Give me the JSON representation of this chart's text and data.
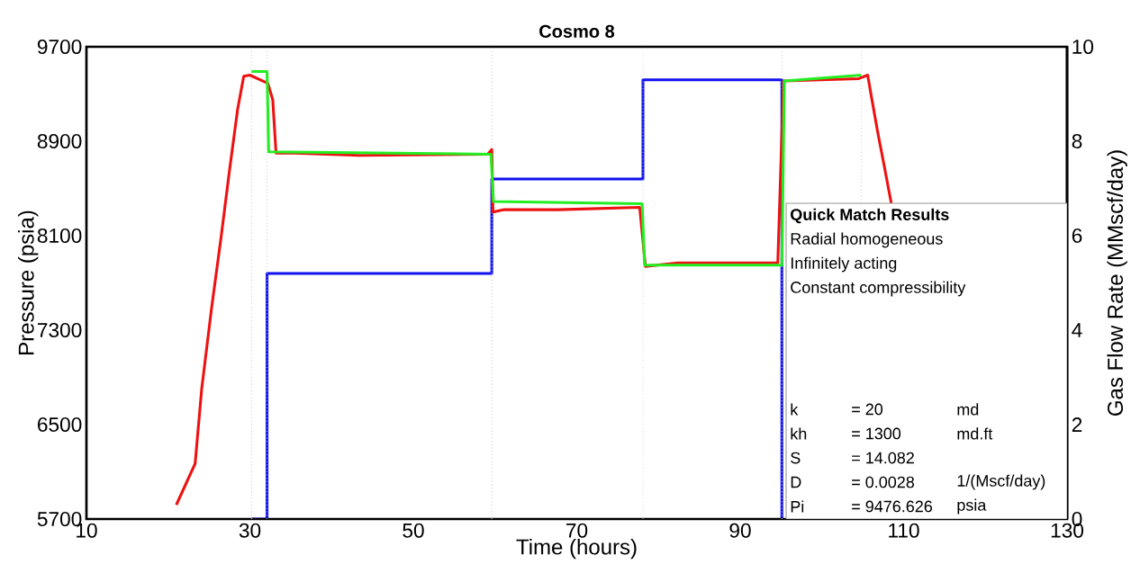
{
  "chart_data": {
    "type": "line",
    "title": "Cosmo 8",
    "xlabel": "Time (hours)",
    "ylabel": "Pressure (psia)",
    "y2label": "Gas Flow Rate (MMscf/day)",
    "xlim": [
      10,
      130
    ],
    "xticks": [
      10,
      30,
      50,
      70,
      90,
      110,
      130
    ],
    "ylim": [
      5700,
      9700
    ],
    "yticks": [
      5700,
      6500,
      7300,
      8100,
      8900,
      9700
    ],
    "y2lim": [
      0,
      10
    ],
    "y2ticks": [
      0,
      2,
      4,
      6,
      8,
      10
    ],
    "series": [
      {
        "color": "#ee1111",
        "x": [
          21.0,
          23.3,
          24.1,
          25.3,
          26.5,
          27.5,
          28.5,
          29.25,
          30.0,
          31.6,
          32.2,
          32.8,
          33.2,
          35.5,
          43.4,
          59.1,
          59.6,
          59.75,
          61.1,
          65.1,
          67.7,
          77.7,
          78.4,
          82.4,
          94.6,
          95.3,
          104.5,
          105.6,
          106.1,
          106.9,
          107.6,
          108.5
        ],
        "values": [
          5820,
          6170,
          6800,
          7480,
          8100,
          8650,
          9170,
          9450,
          9460,
          9410,
          9390,
          9250,
          8800,
          8800,
          8780,
          8790,
          8830,
          8300,
          8320,
          8320,
          8320,
          8340,
          7840,
          7870,
          7870,
          9410,
          9430,
          9460,
          9260,
          8950,
          8700,
          8370
        ]
      },
      {
        "color": "#22ee22",
        "x": [
          30.2,
          32.1,
          32.3,
          59.5,
          59.8,
          78.0,
          78.3,
          95.1,
          95.4,
          104.8
        ],
        "values": [
          9490,
          9490,
          8810,
          8790,
          8390,
          8370,
          7850,
          7850,
          9410,
          9460
        ]
      },
      {
        "type": "step",
        "axis": "y2",
        "color": "#1111ee",
        "x": [
          30.2,
          32.1,
          59.6,
          78.1,
          95.1
        ],
        "values": [
          0,
          5.2,
          7.2,
          9.3,
          0
        ]
      }
    ],
    "ref_lines": [
      {
        "axis": "x",
        "value": 30.2,
        "color": "#c8c8c8",
        "line_style": "dotted"
      },
      {
        "axis": "x",
        "value": 32.1,
        "color": "#c8c8c8",
        "line_style": "dotted"
      },
      {
        "axis": "x",
        "value": 59.6,
        "color": "#c8c8c8",
        "line_style": "dotted"
      },
      {
        "axis": "x",
        "value": 78.1,
        "color": "#c8c8c8",
        "line_style": "dotted"
      },
      {
        "axis": "x",
        "value": 95.1,
        "color": "#c8c8c8",
        "line_style": "dotted"
      },
      {
        "axis": "x",
        "value": 104.8,
        "color": "#c8c8c8",
        "line_style": "dotted"
      }
    ],
    "annotations": [
      "Quick Match Results",
      "Radial homogeneous",
      "Infinitely acting",
      "Constant compressibility",
      "k",
      "= 20",
      "md",
      "kh",
      "= 1300",
      "md.ft",
      "S",
      "= 14.082",
      "D",
      "= 0.0028",
      "1/(Mscf/day)",
      "Pi",
      "= 9476.626",
      "psia"
    ],
    "grid": false,
    "marker": "none",
    "line_style": "solid"
  }
}
